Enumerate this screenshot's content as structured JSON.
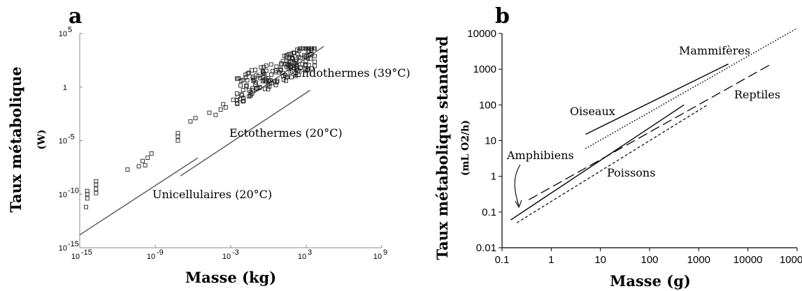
{
  "chart_data": [
    {
      "panel": "a",
      "type": "scatter",
      "xlabel": "Masse (kg)",
      "ylabel": "Taux métabolique",
      "ylabel_unit": "(W)",
      "xscale": "log",
      "yscale": "log",
      "xlim": [
        1e-15,
        1000000000.0
      ],
      "ylim": [
        1e-15,
        100000.0
      ],
      "x_ticks": [
        {
          "value": -15,
          "label": "10"
        },
        {
          "value": -9,
          "label": "10"
        },
        {
          "value": -3,
          "label": "10"
        },
        {
          "value": 3,
          "label": "10"
        },
        {
          "value": 9,
          "label": "10"
        }
      ],
      "x_tick_exponents": [
        "-15",
        "-9",
        "-3",
        "3",
        "9"
      ],
      "y_ticks": [
        {
          "value": 5,
          "base": "10",
          "exp": "5"
        },
        {
          "value": 0,
          "base": "1",
          "exp": ""
        },
        {
          "value": -5,
          "base": "10",
          "exp": "-5"
        },
        {
          "value": -10,
          "base": "10",
          "exp": "-10"
        },
        {
          "value": -15,
          "base": "10",
          "exp": "-15"
        }
      ],
      "lines": [
        {
          "name": "Endothermes (39°C)",
          "x_log10": [
            -1.2,
            4.4
          ],
          "y_log10": [
            -0.6,
            3.8
          ]
        },
        {
          "name": "Ectothermes (20°C)",
          "x_log10": [
            -7.0,
            3.3
          ],
          "y_log10": [
            -8.3,
            -0.3
          ]
        },
        {
          "name": "Unicellulaires (20°C)",
          "x_log10": [
            -15.0,
            -5.6
          ],
          "y_log10": [
            -13.8,
            -6.6
          ]
        }
      ],
      "points_log10": [
        [
          -14.5,
          -11.2
        ],
        [
          -14.4,
          -10.4
        ],
        [
          -14.4,
          -10.0
        ],
        [
          -14.4,
          -9.7
        ],
        [
          -13.7,
          -9.9
        ],
        [
          -13.7,
          -9.5
        ],
        [
          -13.7,
          -9.1
        ],
        [
          -13.7,
          -8.8
        ],
        [
          -11.2,
          -7.7
        ],
        [
          -10.3,
          -7.4
        ],
        [
          -10.0,
          -6.9
        ],
        [
          -9.8,
          -7.3
        ],
        [
          -9.6,
          -6.6
        ],
        [
          -9.3,
          -6.2
        ],
        [
          -7.2,
          -5.0
        ],
        [
          -7.2,
          -4.6
        ],
        [
          -7.2,
          -4.3
        ],
        [
          -6.2,
          -3.2
        ],
        [
          -5.8,
          -2.9
        ],
        [
          -4.7,
          -2.4
        ],
        [
          -4.2,
          -2.6
        ],
        [
          -3.8,
          -2.1
        ],
        [
          -3.6,
          -1.6
        ],
        [
          -3.4,
          -1.9
        ],
        [
          -2.8,
          -1.2
        ],
        [
          -2.5,
          -0.6
        ],
        [
          -2.5,
          -1.5
        ],
        [
          -2.0,
          -1.0
        ]
      ],
      "cloud": {
        "x_log10_range": [
          -2.5,
          3.7
        ],
        "y_log10_range": [
          -2.0,
          3.6
        ],
        "count": 180
      },
      "annotations": [
        {
          "text": "Endothermes (39°C)"
        },
        {
          "text": "Ectothermes (20°C)"
        },
        {
          "text": "Unicellulaires (20°C)"
        }
      ]
    },
    {
      "panel": "b",
      "type": "line",
      "xlabel": "Masse (g)",
      "ylabel": "Taux métabolique standard",
      "ylabel_unit": "(mL O2/h)",
      "xscale": "log",
      "yscale": "log",
      "xlim": [
        0.1,
        100000
      ],
      "ylim": [
        0.01,
        10000
      ],
      "x_tick_labels": [
        "0.1",
        "1",
        "10",
        "100",
        "1000",
        "10000",
        "100000"
      ],
      "y_tick_labels": [
        "0.01",
        "0.1",
        "1",
        "10",
        "100",
        "1000",
        "10000"
      ],
      "series": [
        {
          "name": "Mammifères",
          "style": "dotted",
          "x": [
            5,
            100000
          ],
          "y": [
            6,
            14000
          ]
        },
        {
          "name": "Oiseaux",
          "style": "solid",
          "x": [
            5,
            4000
          ],
          "y": [
            15,
            1400
          ]
        },
        {
          "name": "Reptiles",
          "style": "long-dash",
          "x": [
            0.35,
            30000
          ],
          "y": [
            0.22,
            1400
          ]
        },
        {
          "name": "Amphibiens",
          "style": "solid",
          "x": [
            0.15,
            500
          ],
          "y": [
            0.06,
            100
          ]
        },
        {
          "name": "Poissons",
          "style": "short-dash",
          "x": [
            0.2,
            1500
          ],
          "y": [
            0.05,
            100
          ]
        }
      ],
      "annotations": [
        {
          "text": "Mammifères"
        },
        {
          "text": "Oiseaux"
        },
        {
          "text": "Reptiles"
        },
        {
          "text": "Amphibiens"
        },
        {
          "text": "Poissons"
        }
      ]
    }
  ],
  "panels": {
    "a": "a",
    "b": "b"
  }
}
